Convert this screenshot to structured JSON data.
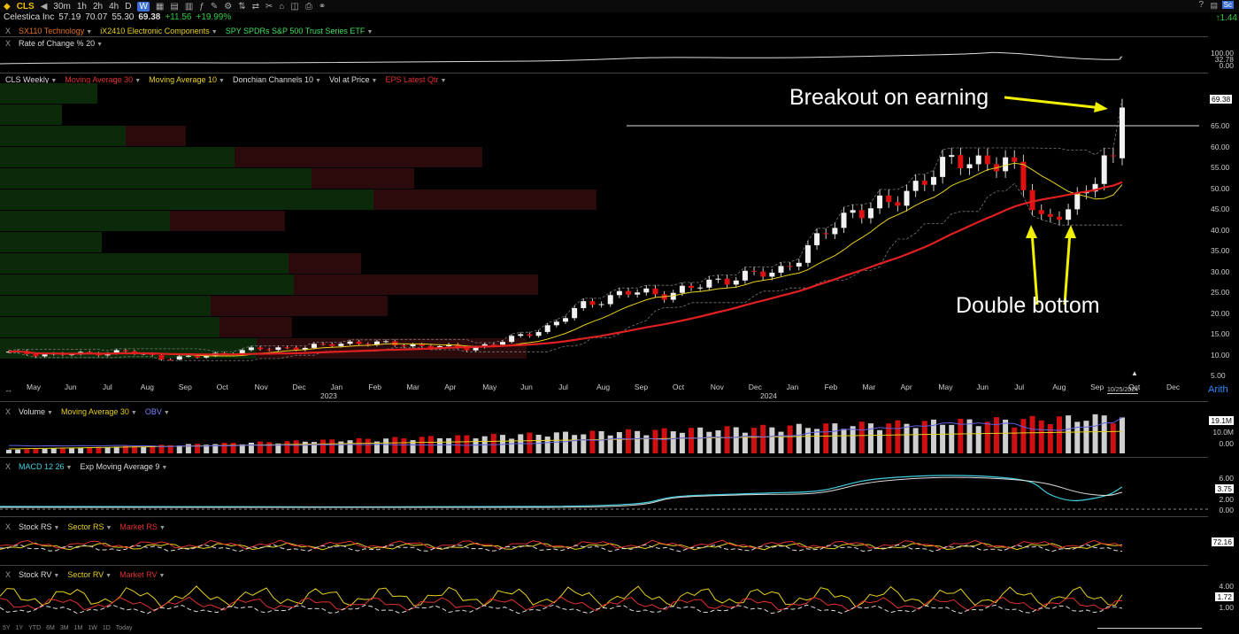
{
  "toolbar": {
    "symbol": "CLS",
    "intervals": [
      "30m",
      "1h",
      "2h",
      "4h",
      "D",
      "W"
    ],
    "active_interval": "W",
    "right_badge": "1.44"
  },
  "quote": {
    "name": "Celestica Inc",
    "open": "57.19",
    "high": "70.07",
    "low": "55.30",
    "close": "69.38",
    "change": "+11.56",
    "change_pct": "+19.99%"
  },
  "groups_row": {
    "sector": "SX110 Technology",
    "industry": "iX2410 Electronic Components",
    "benchmark": "SPY SPDRs S&P 500 Trust Series ETF"
  },
  "roc_panel": {
    "label": "Rate of Change % 20",
    "axis": [
      "100.00",
      "32.78",
      "0.00"
    ]
  },
  "main_panel": {
    "labels": [
      "CLS Weekly",
      "Moving Average 30",
      "Moving Average 10",
      "Donchian Channels 10",
      "Vol at Price",
      "EPS Latest Qtr"
    ],
    "label_colors": [
      "#dddddd",
      "#e03030",
      "#e8d020",
      "#dddddd",
      "#dddddd",
      "#e03030"
    ],
    "y_ticks": [
      "65.00",
      "60.00",
      "55.00",
      "50.00",
      "45.00",
      "40.00",
      "35.00",
      "30.00",
      "25.00",
      "20.00",
      "15.00",
      "10.00",
      "5.00"
    ],
    "last_price": "69.38",
    "scale_mode": "Arith",
    "annotation_breakout": "Breakout on earning",
    "annotation_double_bottom": "Double bottom"
  },
  "x_axis": {
    "months": [
      "May",
      "Jun",
      "Jul",
      "Aug",
      "Sep",
      "Oct",
      "Nov",
      "Dec",
      "Jan",
      "Feb",
      "Mar",
      "Apr",
      "May",
      "Jun",
      "Jul",
      "Aug",
      "Sep",
      "Oct",
      "Nov",
      "Dec",
      "Jan",
      "Feb",
      "Mar",
      "Apr",
      "May",
      "Jun",
      "Jul",
      "Aug",
      "Sep",
      "Oct",
      "Dec"
    ],
    "years": [
      "2023",
      "2024"
    ],
    "current_date": "10/25/2024"
  },
  "volume_panel": {
    "labels": [
      "Volume",
      "Moving Average 30",
      "OBV"
    ],
    "label_colors": [
      "#dddddd",
      "#e8d020",
      "#8080ff"
    ],
    "axis": [
      "19.1M",
      "10.0M",
      "0.00"
    ]
  },
  "macd_panel": {
    "labels": [
      "MACD 12 26",
      "Exp Moving Average 9"
    ],
    "label_colors": [
      "#40d0e0",
      "#dddddd"
    ],
    "axis": [
      "6.00",
      "3.75",
      "2.00",
      "0.00"
    ]
  },
  "rs_panel": {
    "labels": [
      "Stock RS",
      "Sector RS",
      "Market RS"
    ],
    "label_colors": [
      "#dddddd",
      "#e8d020",
      "#e03030"
    ],
    "axis": [
      "72.16"
    ]
  },
  "rv_panel": {
    "labels": [
      "Stock RV",
      "Sector RV",
      "Market RV"
    ],
    "label_colors": [
      "#dddddd",
      "#e8d020",
      "#e03030"
    ],
    "axis": [
      "4.00",
      "1.72",
      "1.00"
    ]
  },
  "timeframe_buttons": [
    "5Y",
    "1Y",
    "YTD",
    "6M",
    "3M",
    "1M",
    "1W",
    "1D",
    "Today"
  ],
  "chart_data": {
    "type": "candlestick",
    "title": "CLS Weekly",
    "y_range": [
      5,
      70
    ],
    "approx_closes": {
      "2022-05": 10.5,
      "2022-06": 10,
      "2022-07": 10.2,
      "2022-08": 10.8,
      "2022-09": 9.2,
      "2022-10": 9.5,
      "2022-11": 11,
      "2022-12": 11.5,
      "2023-01": 12,
      "2023-02": 13,
      "2023-03": 12.5,
      "2023-04": 12,
      "2023-05": 11.5,
      "2023-06": 13.5,
      "2023-07": 16.5,
      "2023-08": 22,
      "2023-09": 25,
      "2023-10": 24.5,
      "2023-11": 26.5,
      "2023-12": 29,
      "2024-01": 29.5,
      "2024-02": 37,
      "2024-03": 45,
      "2024-04": 46,
      "2024-05": 54,
      "2024-06": 57,
      "2024-07": 56,
      "2024-08": 42,
      "2024-09": 47,
      "2024-10": 69.38
    }
  }
}
